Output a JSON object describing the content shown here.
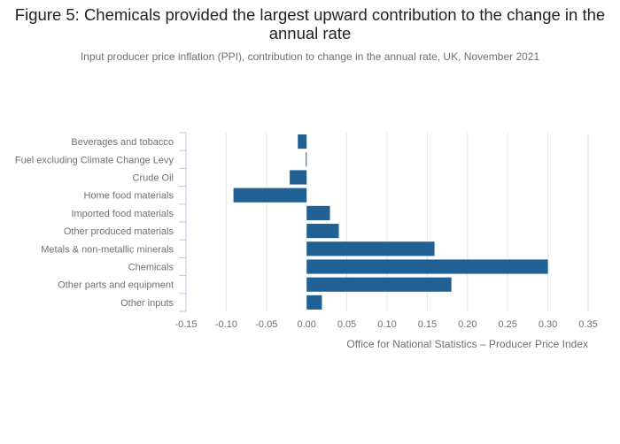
{
  "title": "Figure 5: Chemicals provided the largest upward contribution to the change in the annual rate",
  "subtitle": "Input producer price inflation (PPI), contribution to change in the annual rate, UK, November 2021",
  "colors": {
    "bar": "#206095",
    "grid": "#e6e6e6",
    "axis": "#bfc7e0"
  },
  "chart_data": {
    "type": "bar",
    "orientation": "horizontal",
    "categories": [
      "Beverages and tobacco",
      "Fuel excluding Climate Change Levy",
      "Crude Oil",
      "Home food materials",
      "Imported food materials",
      "Other produced materials",
      "Metals & non-metallic minerals",
      "Chemicals",
      "Other parts and equipment",
      "Other inputs"
    ],
    "values": [
      -0.011,
      -0.001,
      -0.021,
      -0.091,
      0.029,
      0.04,
      0.159,
      0.3,
      0.18,
      0.019
    ],
    "xlabel": "Office for National Statistics – Producer Price Index",
    "xlim": [
      -0.15,
      0.35
    ],
    "xticks": [
      "-0.15",
      "-0.10",
      "-0.05",
      "0.00",
      "0.05",
      "0.10",
      "0.15",
      "0.20",
      "0.25",
      "0.30",
      "0.35"
    ],
    "grid": true
  }
}
